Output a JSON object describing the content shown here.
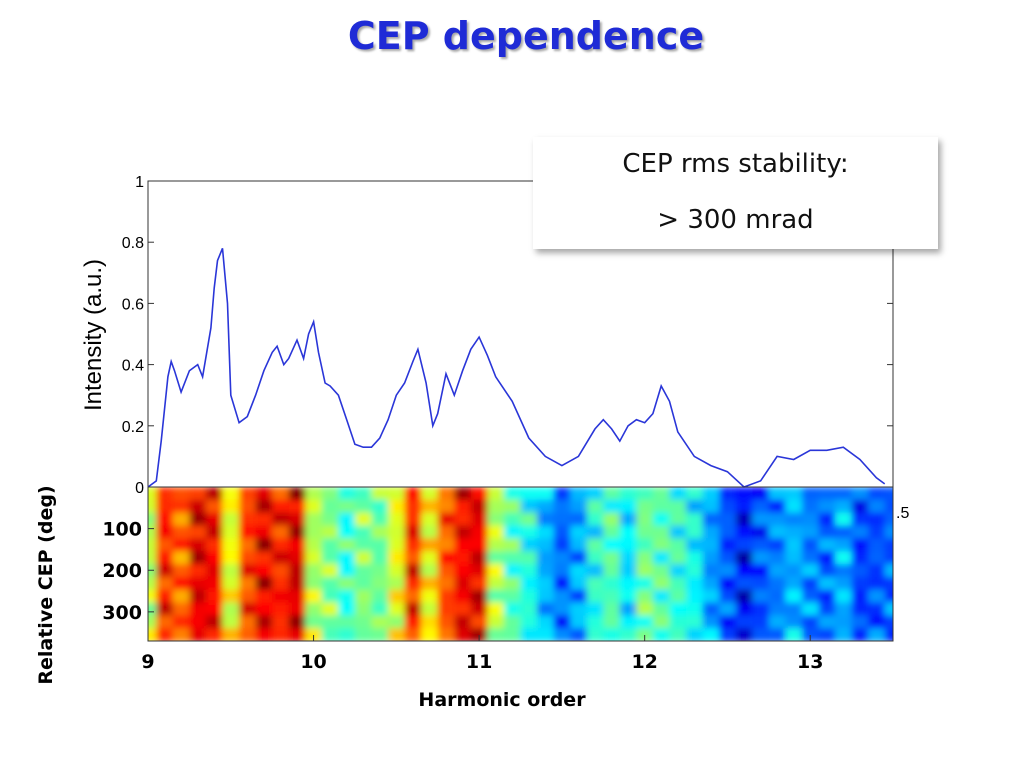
{
  "slide": {
    "title": "CEP dependence"
  },
  "callout": {
    "line1": "CEP rms stability:",
    "line2": "> 300 mrad"
  },
  "colors": {
    "title": "#1f2bd6",
    "line": "#2a36d8"
  },
  "chart_data": [
    {
      "type": "line",
      "ylabel": "Intensity (a.u.)",
      "xlim": [
        9,
        13.5
      ],
      "ylim": [
        0,
        1
      ],
      "yticks": [
        0,
        0.2,
        0.4,
        0.6,
        0.8,
        1
      ],
      "ytick_labels": [
        "0",
        "0.2",
        "0.4",
        "0.6",
        "0.8",
        "1"
      ],
      "right_edge_label": ".5",
      "grid": false,
      "series": [
        {
          "x": [
            9.0,
            9.05,
            9.08,
            9.12,
            9.14,
            9.16,
            9.2,
            9.25,
            9.3,
            9.33,
            9.38,
            9.4,
            9.42,
            9.45,
            9.48,
            9.5,
            9.55,
            9.6,
            9.65,
            9.7,
            9.75,
            9.78,
            9.82,
            9.85,
            9.9,
            9.94,
            9.97,
            10.0,
            10.03,
            10.07,
            10.1,
            10.15,
            10.2,
            10.25,
            10.3,
            10.35,
            10.4,
            10.45,
            10.5,
            10.55,
            10.6,
            10.63,
            10.68,
            10.72,
            10.75,
            10.8,
            10.85,
            10.9,
            10.95,
            11.0,
            11.05,
            11.1,
            11.2,
            11.3,
            11.4,
            11.5,
            11.6,
            11.7,
            11.75,
            11.8,
            11.85,
            11.9,
            11.95,
            12.0,
            12.05,
            12.1,
            12.15,
            12.2,
            12.3,
            12.4,
            12.5,
            12.6,
            12.7,
            12.8,
            12.9,
            13.0,
            13.1,
            13.2,
            13.3,
            13.4,
            13.45
          ],
          "y": [
            0.0,
            0.02,
            0.15,
            0.36,
            0.41,
            0.38,
            0.31,
            0.38,
            0.4,
            0.36,
            0.52,
            0.65,
            0.74,
            0.78,
            0.6,
            0.3,
            0.21,
            0.23,
            0.3,
            0.38,
            0.44,
            0.46,
            0.4,
            0.42,
            0.48,
            0.42,
            0.5,
            0.54,
            0.44,
            0.34,
            0.33,
            0.3,
            0.22,
            0.14,
            0.13,
            0.13,
            0.16,
            0.22,
            0.3,
            0.34,
            0.41,
            0.45,
            0.34,
            0.2,
            0.24,
            0.37,
            0.3,
            0.38,
            0.45,
            0.49,
            0.43,
            0.36,
            0.28,
            0.16,
            0.1,
            0.07,
            0.1,
            0.19,
            0.22,
            0.19,
            0.15,
            0.2,
            0.22,
            0.21,
            0.24,
            0.33,
            0.28,
            0.18,
            0.1,
            0.07,
            0.05,
            0.0,
            0.02,
            0.1,
            0.09,
            0.12,
            0.12,
            0.13,
            0.09,
            0.03,
            0.01
          ]
        }
      ]
    },
    {
      "type": "heatmap",
      "xlabel": "Harmonic order",
      "ylabel": "Relative CEP (deg)",
      "xlim": [
        9,
        13.5
      ],
      "ylim": [
        0,
        370
      ],
      "xticks": [
        9,
        10,
        11,
        12,
        13
      ],
      "xtick_labels": [
        "9",
        "10",
        "11",
        "12",
        "13"
      ],
      "yticks": [
        100,
        200,
        300
      ],
      "ytick_labels": [
        "100",
        "200",
        "300"
      ],
      "colormap": "jet",
      "columns_x": [
        9.0,
        9.1,
        9.2,
        9.3,
        9.4,
        9.5,
        9.6,
        9.7,
        9.8,
        9.9,
        10.0,
        10.1,
        10.2,
        10.3,
        10.4,
        10.5,
        10.6,
        10.7,
        10.8,
        10.9,
        11.0,
        11.1,
        11.2,
        11.3,
        11.4,
        11.5,
        11.6,
        11.7,
        11.8,
        11.9,
        12.0,
        12.1,
        12.2,
        12.3,
        12.4,
        12.5,
        12.6,
        12.7,
        12.8,
        12.9,
        13.0,
        13.1,
        13.2,
        13.3,
        13.4,
        13.5
      ],
      "column_intensity": [
        0.55,
        0.85,
        0.78,
        0.9,
        0.88,
        0.6,
        0.82,
        0.9,
        0.85,
        0.92,
        0.55,
        0.5,
        0.42,
        0.5,
        0.48,
        0.6,
        0.85,
        0.62,
        0.8,
        0.88,
        0.9,
        0.55,
        0.45,
        0.4,
        0.3,
        0.22,
        0.28,
        0.4,
        0.45,
        0.35,
        0.48,
        0.45,
        0.42,
        0.38,
        0.28,
        0.2,
        0.12,
        0.2,
        0.25,
        0.3,
        0.25,
        0.22,
        0.3,
        0.18,
        0.2,
        0.22
      ]
    }
  ]
}
